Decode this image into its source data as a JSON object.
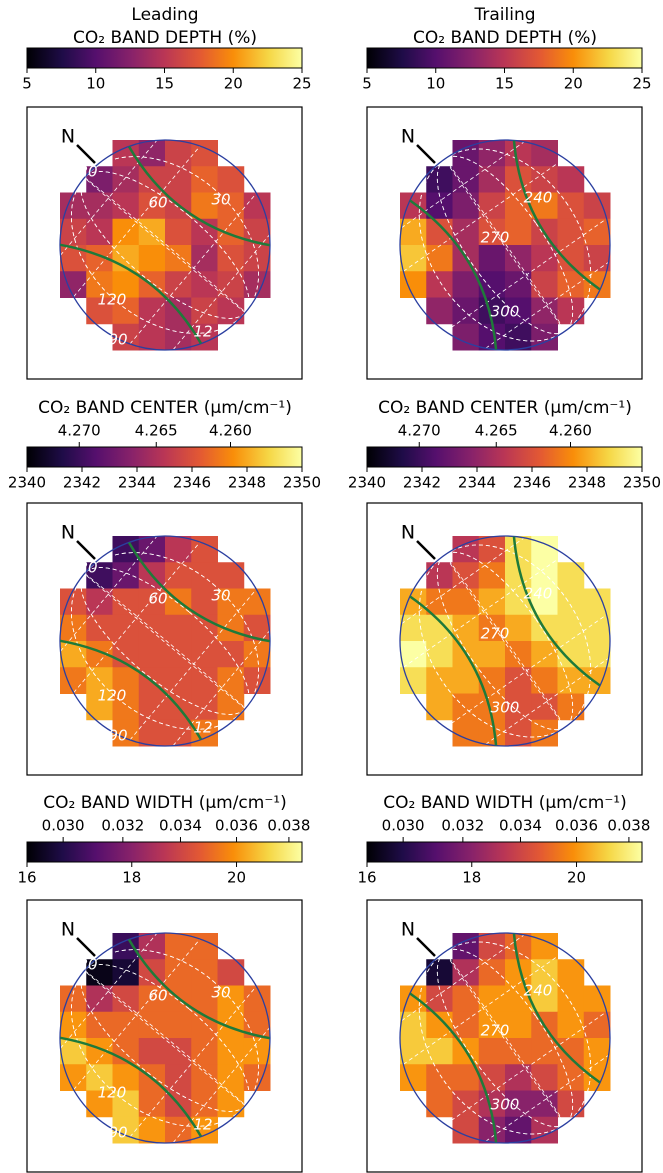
{
  "chart_data": [
    {
      "type": "heatmap",
      "title": "Leading",
      "colorbar_label": "CO₂ BAND DEPTH (%)",
      "clim": [
        5,
        25
      ],
      "cticks": [
        5,
        10,
        15,
        20,
        25
      ],
      "annotations": [
        "N",
        "20",
        "60",
        "30",
        "120",
        "90",
        "12"
      ],
      "rows": [
        [
          null,
          null,
          15,
          13,
          16,
          17,
          null,
          null
        ],
        [
          null,
          12,
          14,
          16,
          16,
          18,
          17,
          null
        ],
        [
          14,
          14,
          15,
          17,
          16,
          19,
          18,
          15
        ],
        [
          16,
          15,
          20,
          21,
          17,
          15,
          18,
          16
        ],
        [
          17,
          18,
          21,
          20,
          19,
          14,
          17,
          16
        ],
        [
          13,
          19,
          20,
          18,
          16,
          15,
          16,
          14
        ],
        [
          null,
          17,
          18,
          15,
          14,
          16,
          15,
          null
        ],
        [
          null,
          null,
          16,
          15,
          14,
          15,
          null,
          null
        ]
      ]
    },
    {
      "type": "heatmap",
      "title": "Trailing",
      "colorbar_label": "CO₂ BAND DEPTH (%)",
      "clim": [
        5,
        25
      ],
      "cticks": [
        5,
        10,
        15,
        20,
        25
      ],
      "annotations": [
        "N",
        "240",
        "270",
        "300"
      ],
      "rows": [
        [
          null,
          null,
          11,
          13,
          15,
          14,
          null,
          null
        ],
        [
          null,
          9,
          11,
          14,
          17,
          16,
          15,
          null
        ],
        [
          15,
          10,
          12,
          16,
          18,
          19,
          17,
          16
        ],
        [
          21,
          17,
          14,
          17,
          18,
          16,
          17,
          18
        ],
        [
          22,
          19,
          14,
          11,
          13,
          15,
          17,
          16
        ],
        [
          20,
          15,
          12,
          10,
          11,
          16,
          18,
          19
        ],
        [
          null,
          13,
          11,
          9,
          10,
          13,
          15,
          null
        ],
        [
          null,
          null,
          12,
          10,
          9,
          12,
          null,
          null
        ]
      ]
    },
    {
      "type": "heatmap",
      "colorbar_label": "CO₂ BAND CENTER (μm/cm⁻¹)",
      "clim": [
        2340,
        2350
      ],
      "cticks": [
        2340,
        2342,
        2344,
        2346,
        2348,
        2350
      ],
      "cticks_top": [
        {
          "value": 2341.9,
          "label": "4.270"
        },
        {
          "value": 2344.7,
          "label": "4.265"
        },
        {
          "value": 2347.4,
          "label": "4.260"
        }
      ],
      "annotations": [
        "N",
        "20",
        "60",
        "30",
        "120",
        "90",
        "12"
      ],
      "rows": [
        [
          null,
          null,
          2342,
          2343,
          2345,
          2346,
          null,
          null
        ],
        [
          null,
          2342,
          2343,
          2345,
          2346,
          2346,
          2346,
          null
        ],
        [
          2346,
          2345,
          2346,
          2346,
          2347,
          2346,
          2347,
          2347
        ],
        [
          2347,
          2346,
          2346,
          2346,
          2346,
          2346,
          2347,
          2346
        ],
        [
          2348,
          2347,
          2346,
          2346,
          2346,
          2346,
          2346,
          2347
        ],
        [
          2347,
          2348,
          2347,
          2346,
          2346,
          2346,
          2347,
          2346
        ],
        [
          null,
          2348,
          2347,
          2346,
          2346,
          2346,
          2347,
          null
        ],
        [
          null,
          null,
          2347,
          2346,
          2346,
          2347,
          null,
          null
        ]
      ]
    },
    {
      "type": "heatmap",
      "colorbar_label": "CO₂ BAND CENTER (μm/cm⁻¹)",
      "clim": [
        2340,
        2350
      ],
      "cticks": [
        2340,
        2342,
        2344,
        2346,
        2348,
        2350
      ],
      "cticks_top": [
        {
          "value": 2341.9,
          "label": "4.270"
        },
        {
          "value": 2344.7,
          "label": "4.265"
        },
        {
          "value": 2347.4,
          "label": "4.260"
        }
      ],
      "annotations": [
        "N",
        "240",
        "270",
        "300"
      ],
      "rows": [
        [
          null,
          null,
          2345,
          2346,
          2349,
          2350,
          null,
          null
        ],
        [
          null,
          2345,
          2346,
          2347,
          2349,
          2350,
          2349,
          null
        ],
        [
          2348,
          2347,
          2347,
          2348,
          2349,
          2350,
          2349,
          2349
        ],
        [
          2349,
          2349,
          2348,
          2347,
          2348,
          2349,
          2349,
          2349
        ],
        [
          2350,
          2349,
          2348,
          2348,
          2347,
          2348,
          2349,
          2349
        ],
        [
          2349,
          2348,
          2348,
          2347,
          2346,
          2347,
          2348,
          2348
        ],
        [
          null,
          2348,
          2347,
          2347,
          2346,
          2346,
          2347,
          null
        ],
        [
          null,
          null,
          2347,
          2347,
          2346,
          2347,
          null,
          null
        ]
      ]
    },
    {
      "type": "heatmap",
      "colorbar_label": "CO₂ BAND WIDTH (μm/cm⁻¹)",
      "clim": [
        16,
        21.25
      ],
      "cticks": [
        16,
        18,
        20
      ],
      "cticks_top": [
        {
          "value": 16.69,
          "label": "0.030"
        },
        {
          "value": 17.83,
          "label": "0.032"
        },
        {
          "value": 18.93,
          "label": "0.034"
        },
        {
          "value": 20.0,
          "label": "0.036"
        },
        {
          "value": 21.0,
          "label": "0.038"
        }
      ],
      "annotations": [
        "N",
        "20",
        "60",
        "30",
        "120",
        "90",
        "12"
      ],
      "rows": [
        [
          null,
          null,
          17,
          18.5,
          19.5,
          19.5,
          null,
          null
        ],
        [
          null,
          16.2,
          16.5,
          19,
          19.5,
          19.5,
          19,
          null
        ],
        [
          19.5,
          18.5,
          19,
          19.5,
          19.5,
          19.5,
          20,
          19.5
        ],
        [
          20,
          19.5,
          19.5,
          19.5,
          19.5,
          19.5,
          20,
          19.5
        ],
        [
          20.5,
          20,
          19.5,
          19,
          19,
          19.5,
          20,
          20
        ],
        [
          20,
          20.5,
          20,
          19.5,
          19,
          19.5,
          20,
          19.5
        ],
        [
          null,
          20,
          20.5,
          19.5,
          19,
          19.5,
          20,
          null
        ],
        [
          null,
          null,
          20.5,
          20,
          19.5,
          20,
          null,
          null
        ]
      ]
    },
    {
      "type": "heatmap",
      "colorbar_label": "CO₂ BAND WIDTH (μm/cm⁻¹)",
      "clim": [
        16,
        21.25
      ],
      "cticks": [
        16,
        18,
        20
      ],
      "cticks_top": [
        {
          "value": 16.69,
          "label": "0.030"
        },
        {
          "value": 17.83,
          "label": "0.032"
        },
        {
          "value": 18.93,
          "label": "0.034"
        },
        {
          "value": 20.0,
          "label": "0.036"
        },
        {
          "value": 21.0,
          "label": "0.038"
        }
      ],
      "annotations": [
        "N",
        "240",
        "270",
        "300"
      ],
      "rows": [
        [
          null,
          null,
          17.5,
          19,
          19.5,
          20,
          null,
          null
        ],
        [
          null,
          16.5,
          18.5,
          19.5,
          20,
          20.5,
          20,
          null
        ],
        [
          20,
          19,
          19.5,
          20,
          20,
          20.5,
          20,
          20
        ],
        [
          20.5,
          20,
          19.5,
          20,
          20,
          19.5,
          20,
          19.5
        ],
        [
          20.5,
          20.5,
          20,
          19.5,
          19.5,
          19.5,
          19.5,
          20
        ],
        [
          20,
          19.5,
          19.5,
          19,
          18.5,
          19,
          19.5,
          20
        ],
        [
          null,
          19.5,
          19,
          18.5,
          18,
          18,
          19,
          null
        ],
        [
          null,
          null,
          19,
          18,
          17.5,
          18.5,
          null,
          null
        ]
      ]
    }
  ]
}
